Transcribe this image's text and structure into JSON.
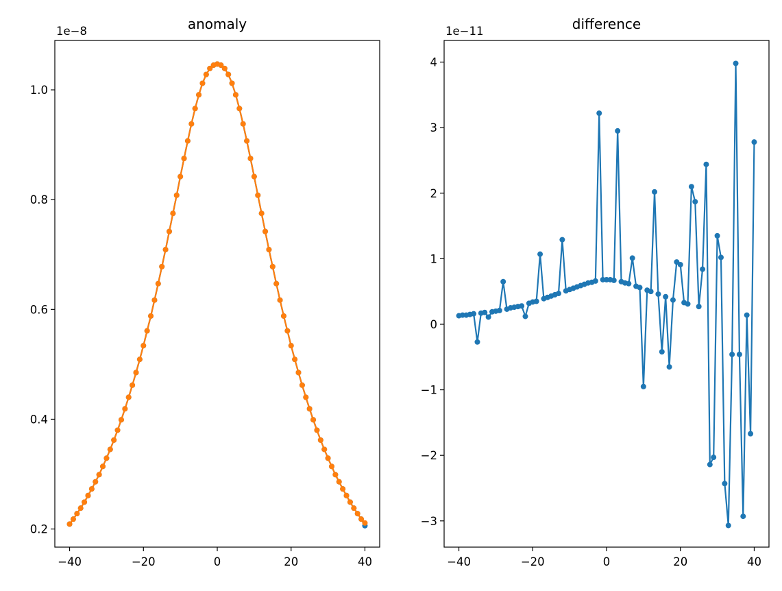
{
  "chart_data": [
    {
      "type": "line",
      "title": "anomaly",
      "offset_text": "1e−8",
      "scale": 1e-08,
      "xlim": [
        -44,
        44
      ],
      "ylim": [
        0.167,
        1.09
      ],
      "xticks": [
        -40,
        -20,
        0,
        20,
        40
      ],
      "xtick_labels": [
        "−40",
        "−20",
        "0",
        "20",
        "40"
      ],
      "yticks": [
        0.2,
        0.4,
        0.6,
        0.8,
        1.0
      ],
      "ytick_labels": [
        "0.2",
        "0.4",
        "0.6",
        "0.8",
        "1.0"
      ],
      "series": [
        {
          "color": "#1f77b4",
          "x": [
            -40,
            -39,
            -38,
            -37,
            -36,
            -35,
            -34,
            -33,
            -32,
            -31,
            -30,
            -29,
            -28,
            -27,
            -26,
            -25,
            -24,
            -23,
            -22,
            -21,
            -20,
            -19,
            -18,
            -17,
            -16,
            -15,
            -14,
            -13,
            -12,
            -11,
            -10,
            -9,
            -8,
            -7,
            -6,
            -5,
            -4,
            -3,
            -2,
            -1,
            0,
            1,
            2,
            3,
            4,
            5,
            6,
            7,
            8,
            9,
            10,
            11,
            12,
            13,
            14,
            15,
            16,
            17,
            18,
            19,
            20,
            21,
            22,
            23,
            24,
            25,
            26,
            27,
            28,
            29,
            30,
            31,
            32,
            33,
            34,
            35,
            36,
            37,
            38,
            39,
            40
          ],
          "y": [
            0.209,
            0.218,
            0.228,
            0.238,
            0.249,
            0.261,
            0.273,
            0.286,
            0.299,
            0.314,
            0.329,
            0.345,
            0.362,
            0.38,
            0.399,
            0.419,
            0.44,
            0.462,
            0.485,
            0.509,
            0.534,
            0.561,
            0.588,
            0.617,
            0.647,
            0.678,
            0.709,
            0.742,
            0.775,
            0.808,
            0.842,
            0.875,
            0.907,
            0.938,
            0.966,
            0.991,
            1.012,
            1.028,
            1.039,
            1.045,
            1.047,
            1.045,
            1.039,
            1.028,
            1.012,
            0.991,
            0.966,
            0.938,
            0.907,
            0.875,
            0.842,
            0.808,
            0.775,
            0.742,
            0.709,
            0.678,
            0.647,
            0.617,
            0.588,
            0.561,
            0.534,
            0.509,
            0.485,
            0.462,
            0.44,
            0.419,
            0.399,
            0.38,
            0.362,
            0.345,
            0.329,
            0.314,
            0.299,
            0.286,
            0.273,
            0.261,
            0.249,
            0.238,
            0.228,
            0.218,
            0.206
          ]
        },
        {
          "color": "#ff7f0e",
          "x": [
            -40,
            -39,
            -38,
            -37,
            -36,
            -35,
            -34,
            -33,
            -32,
            -31,
            -30,
            -29,
            -28,
            -27,
            -26,
            -25,
            -24,
            -23,
            -22,
            -21,
            -20,
            -19,
            -18,
            -17,
            -16,
            -15,
            -14,
            -13,
            -12,
            -11,
            -10,
            -9,
            -8,
            -7,
            -6,
            -5,
            -4,
            -3,
            -2,
            -1,
            0,
            1,
            2,
            3,
            4,
            5,
            6,
            7,
            8,
            9,
            10,
            11,
            12,
            13,
            14,
            15,
            16,
            17,
            18,
            19,
            20,
            21,
            22,
            23,
            24,
            25,
            26,
            27,
            28,
            29,
            30,
            31,
            32,
            33,
            34,
            35,
            36,
            37,
            38,
            39,
            40
          ],
          "y": [
            0.209,
            0.218,
            0.228,
            0.238,
            0.249,
            0.261,
            0.273,
            0.286,
            0.299,
            0.314,
            0.329,
            0.345,
            0.362,
            0.38,
            0.399,
            0.419,
            0.44,
            0.462,
            0.485,
            0.509,
            0.534,
            0.561,
            0.588,
            0.617,
            0.647,
            0.678,
            0.709,
            0.742,
            0.775,
            0.808,
            0.842,
            0.875,
            0.907,
            0.938,
            0.966,
            0.991,
            1.012,
            1.028,
            1.039,
            1.045,
            1.047,
            1.045,
            1.039,
            1.028,
            1.012,
            0.991,
            0.966,
            0.938,
            0.907,
            0.875,
            0.842,
            0.808,
            0.775,
            0.742,
            0.709,
            0.678,
            0.647,
            0.617,
            0.588,
            0.561,
            0.534,
            0.509,
            0.485,
            0.462,
            0.44,
            0.419,
            0.399,
            0.38,
            0.362,
            0.345,
            0.329,
            0.314,
            0.299,
            0.286,
            0.273,
            0.261,
            0.249,
            0.238,
            0.228,
            0.218,
            0.211
          ]
        }
      ]
    },
    {
      "type": "line",
      "title": "difference",
      "offset_text": "1e−11",
      "scale": 1e-11,
      "xlim": [
        -44,
        44
      ],
      "ylim": [
        -3.4,
        4.33
      ],
      "xticks": [
        -40,
        -20,
        0,
        20,
        40
      ],
      "xtick_labels": [
        "−40",
        "−20",
        "0",
        "20",
        "40"
      ],
      "yticks": [
        -3,
        -2,
        -1,
        0,
        1,
        2,
        3,
        4
      ],
      "ytick_labels": [
        "−3",
        "−2",
        "−1",
        "0",
        "1",
        "2",
        "3",
        "4"
      ],
      "series": [
        {
          "color": "#1f77b4",
          "x": [
            -40,
            -39,
            -38,
            -37,
            -36,
            -35,
            -34,
            -33,
            -32,
            -31,
            -30,
            -29,
            -28,
            -27,
            -26,
            -25,
            -24,
            -23,
            -22,
            -21,
            -20,
            -19,
            -18,
            -17,
            -16,
            -15,
            -14,
            -13,
            -12,
            -11,
            -10,
            -9,
            -8,
            -7,
            -6,
            -5,
            -4,
            -3,
            -2,
            -1,
            0,
            1,
            2,
            3,
            4,
            5,
            6,
            7,
            8,
            9,
            10,
            11,
            12,
            13,
            14,
            15,
            16,
            17,
            18,
            19,
            20,
            21,
            22,
            23,
            24,
            25,
            26,
            27,
            28,
            29,
            30,
            31,
            32,
            33,
            34,
            35,
            36,
            37,
            38,
            39,
            40
          ],
          "y": [
            0.13,
            0.14,
            0.14,
            0.15,
            0.16,
            -0.27,
            0.17,
            0.18,
            0.11,
            0.19,
            0.2,
            0.21,
            0.65,
            0.23,
            0.25,
            0.26,
            0.27,
            0.28,
            0.12,
            0.32,
            0.34,
            0.35,
            1.07,
            0.39,
            0.41,
            0.43,
            0.45,
            0.47,
            1.29,
            0.51,
            0.53,
            0.55,
            0.57,
            0.59,
            0.61,
            0.63,
            0.64,
            0.66,
            3.22,
            0.68,
            0.68,
            0.68,
            0.67,
            2.95,
            0.65,
            0.63,
            0.62,
            1.01,
            0.58,
            0.56,
            -0.95,
            0.52,
            0.5,
            2.02,
            0.46,
            -0.42,
            0.42,
            -0.65,
            0.37,
            0.95,
            0.91,
            0.33,
            0.31,
            2.1,
            1.87,
            0.27,
            0.84,
            2.44,
            -2.14,
            -2.03,
            1.35,
            1.02,
            -2.43,
            -3.07,
            -0.46,
            3.98,
            -0.46,
            -2.93,
            0.14,
            -1.67,
            2.78
          ]
        }
      ]
    }
  ]
}
